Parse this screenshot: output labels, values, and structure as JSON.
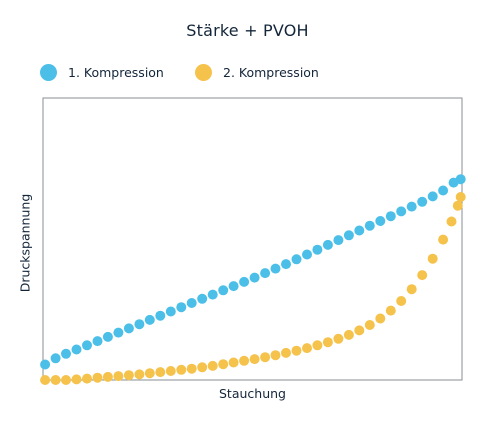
{
  "chart_data": {
    "type": "scatter",
    "title": "Stärke + PVOH",
    "xlabel": "Stauchung",
    "ylabel": "Druckspannung",
    "xlim": [
      0,
      1
    ],
    "ylim": [
      0,
      1
    ],
    "grid": false,
    "legend_position": "top-left",
    "series": [
      {
        "name": "1. Kompression",
        "color": "#4cbfe8",
        "values": [
          [
            0.005,
            0.055
          ],
          [
            0.03,
            0.077
          ],
          [
            0.055,
            0.093
          ],
          [
            0.08,
            0.108
          ],
          [
            0.105,
            0.123
          ],
          [
            0.13,
            0.138
          ],
          [
            0.155,
            0.153
          ],
          [
            0.18,
            0.168
          ],
          [
            0.205,
            0.183
          ],
          [
            0.23,
            0.198
          ],
          [
            0.255,
            0.213
          ],
          [
            0.28,
            0.228
          ],
          [
            0.305,
            0.243
          ],
          [
            0.33,
            0.258
          ],
          [
            0.355,
            0.273
          ],
          [
            0.38,
            0.288
          ],
          [
            0.405,
            0.303
          ],
          [
            0.43,
            0.318
          ],
          [
            0.455,
            0.333
          ],
          [
            0.48,
            0.348
          ],
          [
            0.505,
            0.363
          ],
          [
            0.53,
            0.379
          ],
          [
            0.555,
            0.395
          ],
          [
            0.58,
            0.411
          ],
          [
            0.605,
            0.428
          ],
          [
            0.63,
            0.445
          ],
          [
            0.655,
            0.462
          ],
          [
            0.68,
            0.479
          ],
          [
            0.705,
            0.496
          ],
          [
            0.73,
            0.513
          ],
          [
            0.755,
            0.53
          ],
          [
            0.78,
            0.547
          ],
          [
            0.805,
            0.564
          ],
          [
            0.83,
            0.581
          ],
          [
            0.855,
            0.598
          ],
          [
            0.88,
            0.615
          ],
          [
            0.905,
            0.632
          ],
          [
            0.93,
            0.651
          ],
          [
            0.955,
            0.672
          ],
          [
            0.98,
            0.7
          ],
          [
            0.997,
            0.712
          ]
        ]
      },
      {
        "name": "2. Kompression",
        "color": "#f5c24c",
        "values": [
          [
            0.005,
            0.0
          ],
          [
            0.03,
            0.0
          ],
          [
            0.055,
            0.0
          ],
          [
            0.08,
            0.002
          ],
          [
            0.105,
            0.005
          ],
          [
            0.13,
            0.008
          ],
          [
            0.155,
            0.011
          ],
          [
            0.18,
            0.014
          ],
          [
            0.205,
            0.017
          ],
          [
            0.23,
            0.02
          ],
          [
            0.255,
            0.024
          ],
          [
            0.28,
            0.028
          ],
          [
            0.305,
            0.032
          ],
          [
            0.33,
            0.036
          ],
          [
            0.355,
            0.04
          ],
          [
            0.38,
            0.045
          ],
          [
            0.405,
            0.05
          ],
          [
            0.43,
            0.056
          ],
          [
            0.455,
            0.062
          ],
          [
            0.48,
            0.068
          ],
          [
            0.505,
            0.074
          ],
          [
            0.53,
            0.081
          ],
          [
            0.555,
            0.088
          ],
          [
            0.58,
            0.096
          ],
          [
            0.605,
            0.104
          ],
          [
            0.63,
            0.113
          ],
          [
            0.655,
            0.123
          ],
          [
            0.68,
            0.134
          ],
          [
            0.705,
            0.146
          ],
          [
            0.73,
            0.16
          ],
          [
            0.755,
            0.176
          ],
          [
            0.78,
            0.195
          ],
          [
            0.805,
            0.218
          ],
          [
            0.83,
            0.246
          ],
          [
            0.855,
            0.28
          ],
          [
            0.88,
            0.322
          ],
          [
            0.905,
            0.372
          ],
          [
            0.93,
            0.43
          ],
          [
            0.955,
            0.498
          ],
          [
            0.975,
            0.562
          ],
          [
            0.99,
            0.618
          ],
          [
            0.997,
            0.649
          ]
        ]
      }
    ]
  }
}
